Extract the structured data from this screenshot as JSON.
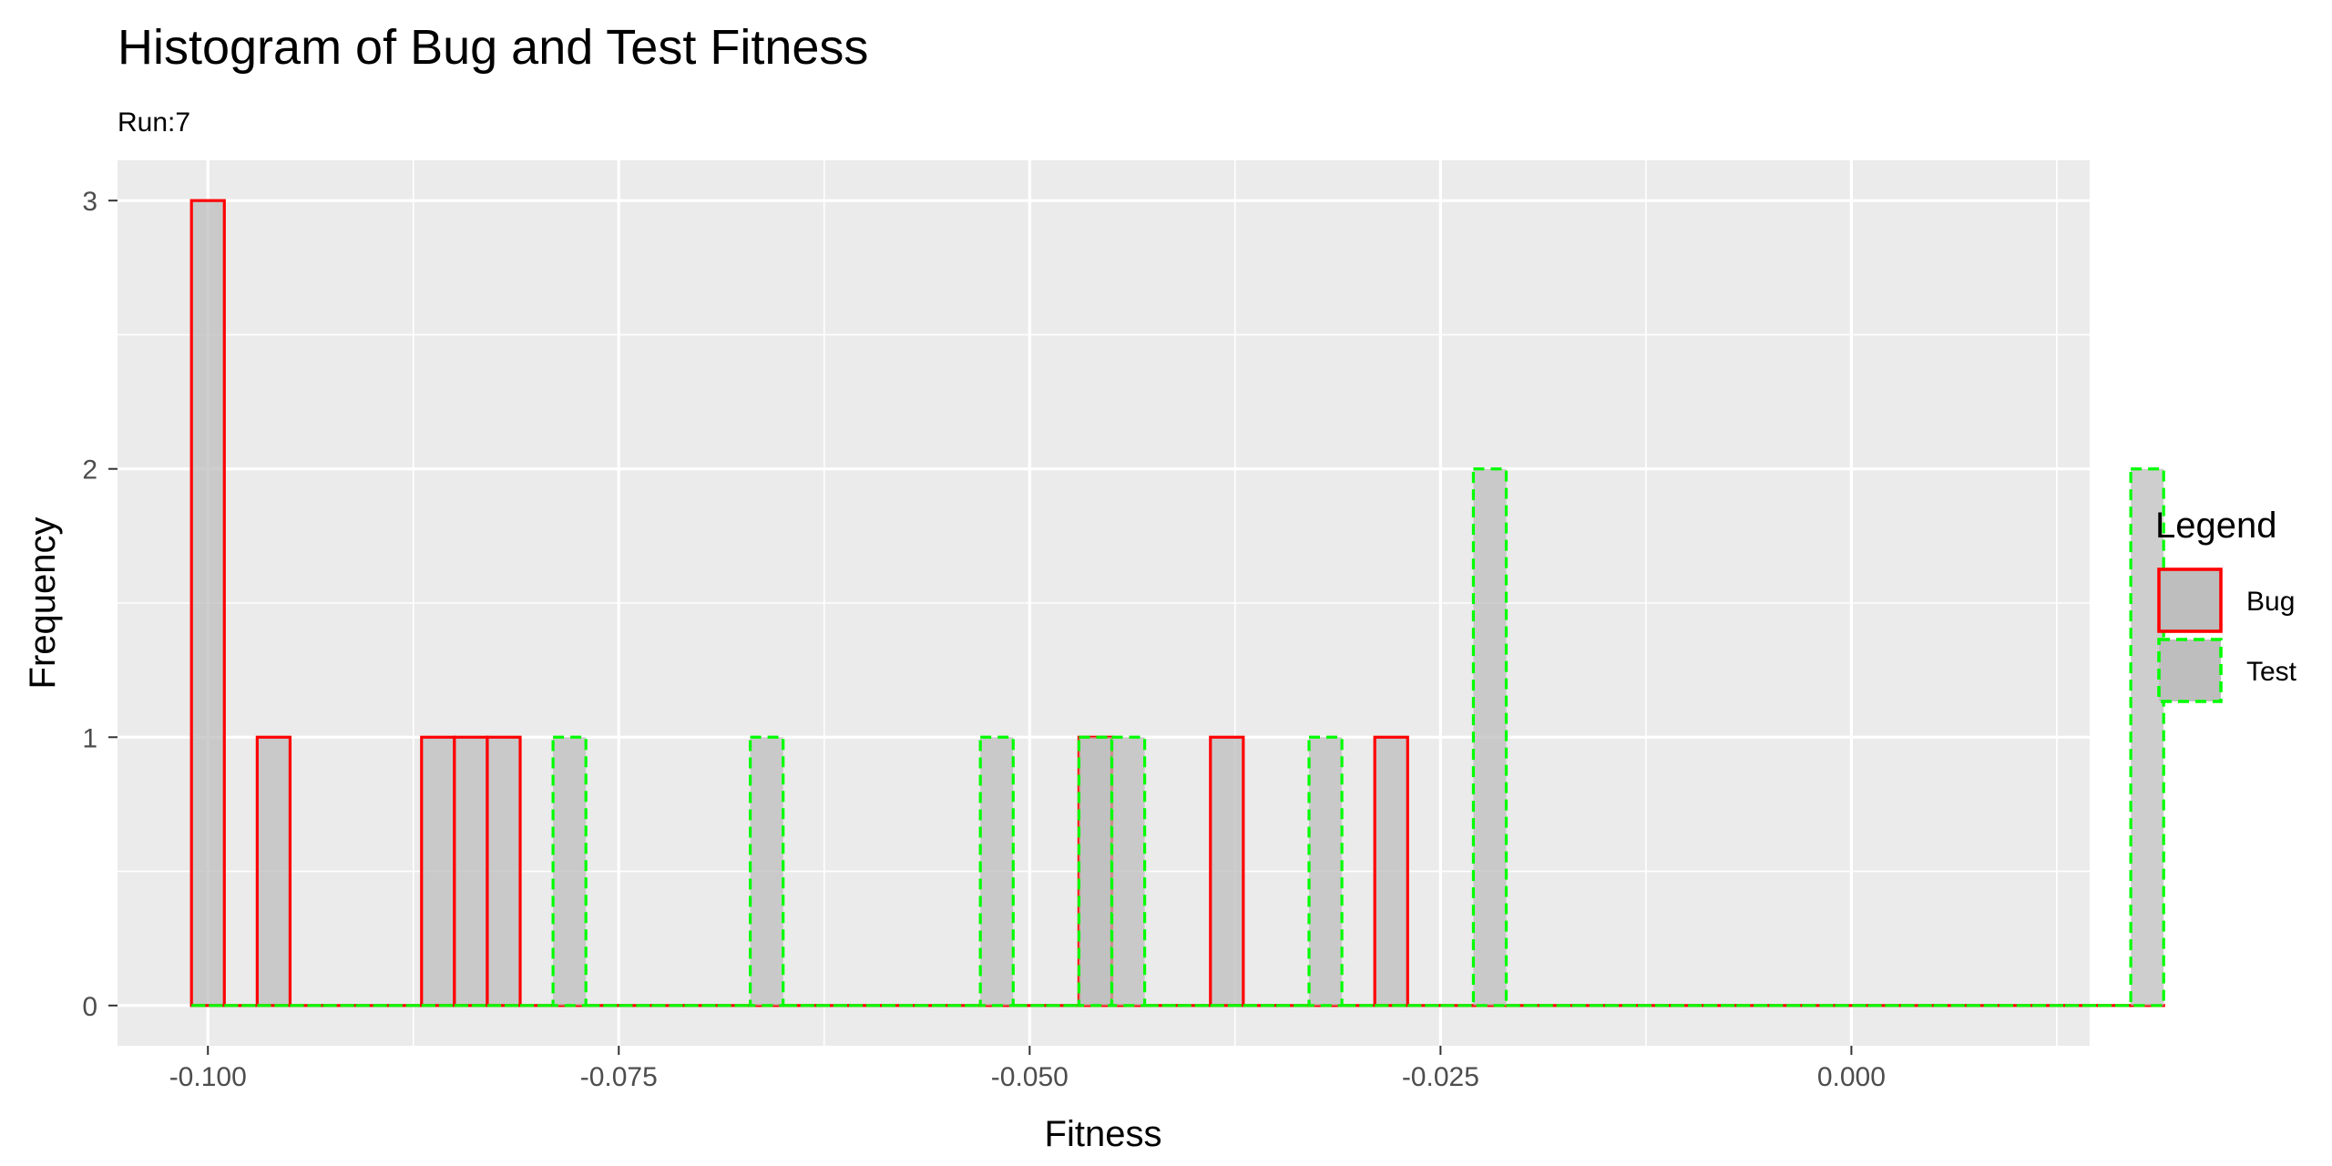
{
  "chart_data": {
    "type": "bar",
    "title": "Histogram of Bug and Test Fitness",
    "subtitle": "Run:7",
    "xlabel": "Fitness",
    "ylabel": "Frequency",
    "xlim": [
      -0.1055,
      0.0145
    ],
    "ylim": [
      -0.15,
      3.15
    ],
    "x_ticks": [
      -0.1,
      -0.075,
      -0.05,
      -0.025,
      0.0
    ],
    "x_tick_labels": [
      "-0.100",
      "-0.075",
      "-0.050",
      "-0.025",
      "0.000"
    ],
    "y_ticks": [
      0,
      1,
      2,
      3
    ],
    "y_tick_labels": [
      "0",
      "1",
      "2",
      "3"
    ],
    "histogram_range": [
      -0.101,
      0.019
    ],
    "bin_width": 0.002,
    "grid": true,
    "legend": {
      "title": "Legend",
      "position": "right"
    },
    "series": [
      {
        "name": "Bug",
        "color": "#ff0000",
        "line": "solid",
        "fill": "#bebebe",
        "bins": [
          {
            "start": -0.101,
            "end": -0.099,
            "count": 3
          },
          {
            "start": -0.097,
            "end": -0.095,
            "count": 1
          },
          {
            "start": -0.087,
            "end": -0.085,
            "count": 1
          },
          {
            "start": -0.085,
            "end": -0.083,
            "count": 1
          },
          {
            "start": -0.083,
            "end": -0.081,
            "count": 1
          },
          {
            "start": -0.047,
            "end": -0.045,
            "count": 1
          },
          {
            "start": -0.039,
            "end": -0.037,
            "count": 1
          },
          {
            "start": -0.029,
            "end": -0.027,
            "count": 1
          }
        ]
      },
      {
        "name": "Test",
        "color": "#00ff00",
        "line": "dashed",
        "fill": "#bebebe",
        "bins": [
          {
            "start": -0.079,
            "end": -0.077,
            "count": 1
          },
          {
            "start": -0.067,
            "end": -0.065,
            "count": 1
          },
          {
            "start": -0.053,
            "end": -0.051,
            "count": 1
          },
          {
            "start": -0.047,
            "end": -0.045,
            "count": 1
          },
          {
            "start": -0.045,
            "end": -0.043,
            "count": 1
          },
          {
            "start": -0.033,
            "end": -0.031,
            "count": 1
          },
          {
            "start": -0.023,
            "end": -0.021,
            "count": 2
          },
          {
            "start": 0.017,
            "end": 0.019,
            "count": 2
          }
        ]
      }
    ]
  }
}
